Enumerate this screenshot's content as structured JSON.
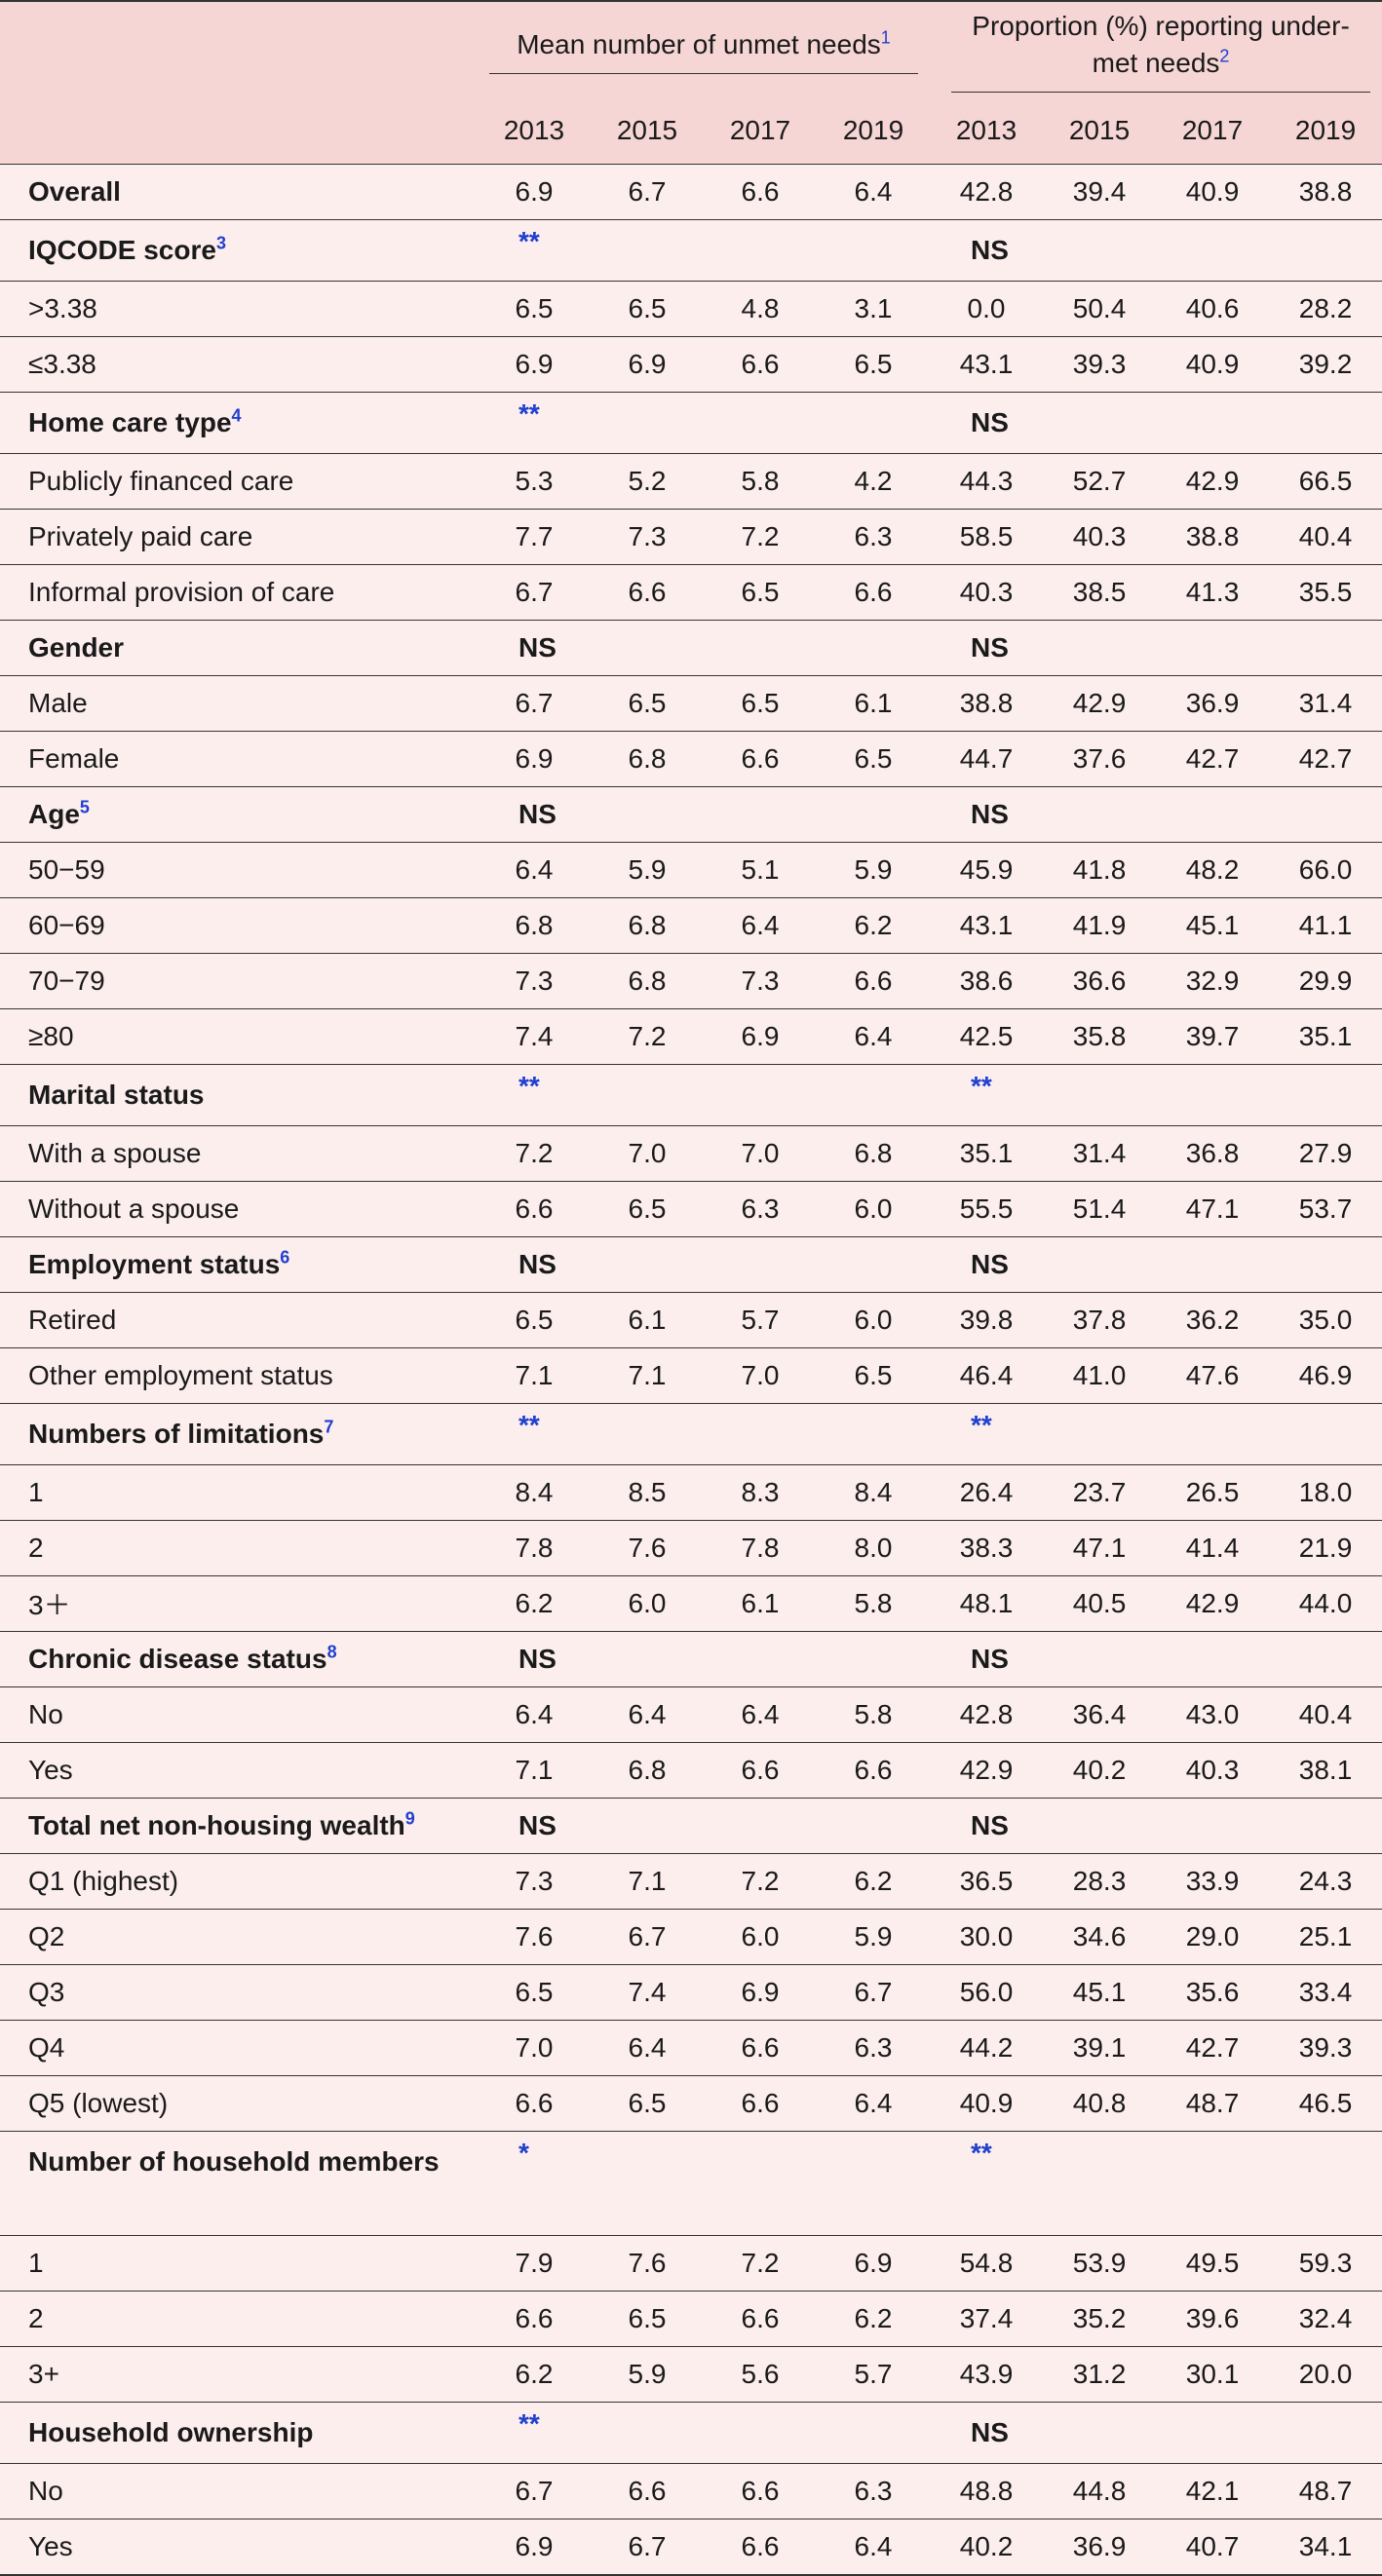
{
  "header": {
    "group1": {
      "text": "Mean number of unmet needs",
      "fn": "1"
    },
    "group2": {
      "text": "Proportion (%) reporting under-met needs",
      "fn": "2"
    },
    "years": [
      "2013",
      "2015",
      "2017",
      "2019",
      "2013",
      "2015",
      "2017",
      "2019"
    ]
  },
  "rows": [
    {
      "label": "Overall",
      "section": true,
      "values": [
        "6.9",
        "6.7",
        "6.6",
        "6.4",
        "42.8",
        "39.4",
        "40.9",
        "38.8"
      ]
    },
    {
      "label": "IQCODE score",
      "fn": "3",
      "section": true,
      "sig1": "**",
      "sig2": "NS"
    },
    {
      "label": ">3.38",
      "values": [
        "6.5",
        "6.5",
        "4.8",
        "3.1",
        "0.0",
        "50.4",
        "40.6",
        "28.2"
      ]
    },
    {
      "label": "≤3.38",
      "values": [
        "6.9",
        "6.9",
        "6.6",
        "6.5",
        "43.1",
        "39.3",
        "40.9",
        "39.2"
      ]
    },
    {
      "label": "Home care type",
      "fn": "4",
      "section": true,
      "sig1": "**",
      "sig2": "NS"
    },
    {
      "label": "Publicly financed care",
      "values": [
        "5.3",
        "5.2",
        "5.8",
        "4.2",
        "44.3",
        "52.7",
        "42.9",
        "66.5"
      ]
    },
    {
      "label": "Privately paid care",
      "values": [
        "7.7",
        "7.3",
        "7.2",
        "6.3",
        "58.5",
        "40.3",
        "38.8",
        "40.4"
      ]
    },
    {
      "label": "Informal provision of care",
      "values": [
        "6.7",
        "6.6",
        "6.5",
        "6.6",
        "40.3",
        "38.5",
        "41.3",
        "35.5"
      ]
    },
    {
      "label": "Gender",
      "section": true,
      "sig1": "NS",
      "sig2": "NS"
    },
    {
      "label": "Male",
      "values": [
        "6.7",
        "6.5",
        "6.5",
        "6.1",
        "38.8",
        "42.9",
        "36.9",
        "31.4"
      ]
    },
    {
      "label": "Female",
      "values": [
        "6.9",
        "6.8",
        "6.6",
        "6.5",
        "44.7",
        "37.6",
        "42.7",
        "42.7"
      ]
    },
    {
      "label": "Age",
      "fn": "5",
      "section": true,
      "sig1": "NS",
      "sig2": "NS"
    },
    {
      "label": "50−59",
      "values": [
        "6.4",
        "5.9",
        "5.1",
        "5.9",
        "45.9",
        "41.8",
        "48.2",
        "66.0"
      ]
    },
    {
      "label": "60−69",
      "values": [
        "6.8",
        "6.8",
        "6.4",
        "6.2",
        "43.1",
        "41.9",
        "45.1",
        "41.1"
      ]
    },
    {
      "label": "70−79",
      "values": [
        "7.3",
        "6.8",
        "7.3",
        "6.6",
        "38.6",
        "36.6",
        "32.9",
        "29.9"
      ]
    },
    {
      "label": "≥80",
      "values": [
        "7.4",
        "7.2",
        "6.9",
        "6.4",
        "42.5",
        "35.8",
        "39.7",
        "35.1"
      ]
    },
    {
      "label": "Marital status",
      "section": true,
      "sig1": "**",
      "sig2": "**"
    },
    {
      "label": "With a spouse",
      "values": [
        "7.2",
        "7.0",
        "7.0",
        "6.8",
        "35.1",
        "31.4",
        "36.8",
        "27.9"
      ]
    },
    {
      "label": "Without a spouse",
      "values": [
        "6.6",
        "6.5",
        "6.3",
        "6.0",
        "55.5",
        "51.4",
        "47.1",
        "53.7"
      ]
    },
    {
      "label": "Employment status",
      "fn": "6",
      "section": true,
      "sig1": "NS",
      "sig2": "NS"
    },
    {
      "label": "Retired",
      "values": [
        "6.5",
        "6.1",
        "5.7",
        "6.0",
        "39.8",
        "37.8",
        "36.2",
        "35.0"
      ]
    },
    {
      "label": "Other employment status",
      "values": [
        "7.1",
        "7.1",
        "7.0",
        "6.5",
        "46.4",
        "41.0",
        "47.6",
        "46.9"
      ]
    },
    {
      "label": "Numbers of limitations",
      "fn": "7",
      "section": true,
      "sig1": "**",
      "sig2": "**"
    },
    {
      "label": "1",
      "values": [
        "8.4",
        "8.5",
        "8.3",
        "8.4",
        "26.4",
        "23.7",
        "26.5",
        "18.0"
      ]
    },
    {
      "label": "2",
      "values": [
        "7.8",
        "7.6",
        "7.8",
        "8.0",
        "38.3",
        "47.1",
        "41.4",
        "21.9"
      ]
    },
    {
      "label": "3＋",
      "values": [
        "6.2",
        "6.0",
        "6.1",
        "5.8",
        "48.1",
        "40.5",
        "42.9",
        "44.0"
      ]
    },
    {
      "label": "Chronic disease status",
      "fn": "8",
      "section": true,
      "sig1": "NS",
      "sig2": "NS"
    },
    {
      "label": "No",
      "values": [
        "6.4",
        "6.4",
        "6.4",
        "5.8",
        "42.8",
        "36.4",
        "43.0",
        "40.4"
      ]
    },
    {
      "label": "Yes",
      "values": [
        "7.1",
        "6.8",
        "6.6",
        "6.6",
        "42.9",
        "40.2",
        "40.3",
        "38.1"
      ]
    },
    {
      "label": "Total net non-housing wealth",
      "fn": "9",
      "section": true,
      "sig1": "NS",
      "sig2": "NS"
    },
    {
      "label": "Q1 (highest)",
      "values": [
        "7.3",
        "7.1",
        "7.2",
        "6.2",
        "36.5",
        "28.3",
        "33.9",
        "24.3"
      ]
    },
    {
      "label": "Q2",
      "values": [
        "7.6",
        "6.7",
        "6.0",
        "5.9",
        "30.0",
        "34.6",
        "29.0",
        "25.1"
      ]
    },
    {
      "label": "Q3",
      "values": [
        "6.5",
        "7.4",
        "6.9",
        "6.7",
        "56.0",
        "45.1",
        "35.6",
        "33.4"
      ]
    },
    {
      "label": "Q4",
      "values": [
        "7.0",
        "6.4",
        "6.6",
        "6.3",
        "44.2",
        "39.1",
        "42.7",
        "39.3"
      ]
    },
    {
      "label": "Q5 (lowest)",
      "values": [
        "6.6",
        "6.5",
        "6.6",
        "6.4",
        "40.9",
        "40.8",
        "48.7",
        "46.5"
      ]
    },
    {
      "label": "Number of household members",
      "section": true,
      "tall": true,
      "sig1": "*",
      "sig2": "**"
    },
    {
      "label": "1",
      "values": [
        "7.9",
        "7.6",
        "7.2",
        "6.9",
        "54.8",
        "53.9",
        "49.5",
        "59.3"
      ]
    },
    {
      "label": "2",
      "values": [
        "6.6",
        "6.5",
        "6.6",
        "6.2",
        "37.4",
        "35.2",
        "39.6",
        "32.4"
      ]
    },
    {
      "label": "3+",
      "values": [
        "6.2",
        "5.9",
        "5.6",
        "5.7",
        "43.9",
        "31.2",
        "30.1",
        "20.0"
      ]
    },
    {
      "label": "Household ownership",
      "section": true,
      "sig1": "**",
      "sig2": "NS"
    },
    {
      "label": "No",
      "values": [
        "6.7",
        "6.6",
        "6.6",
        "6.3",
        "48.8",
        "44.8",
        "42.1",
        "48.7"
      ]
    },
    {
      "label": "Yes",
      "values": [
        "6.9",
        "6.7",
        "6.6",
        "6.4",
        "40.2",
        "36.9",
        "40.7",
        "34.1"
      ]
    }
  ]
}
